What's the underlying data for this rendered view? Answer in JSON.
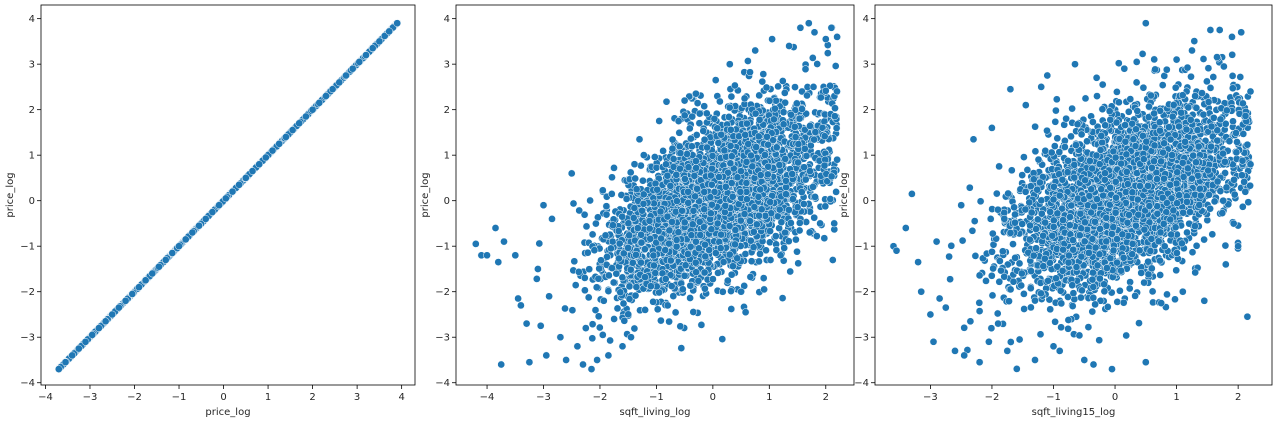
{
  "chart_data": [
    {
      "type": "scatter",
      "xlabel": "price_log",
      "ylabel": "price_log",
      "xlim": [
        -4.1,
        4.3
      ],
      "ylim": [
        -4.05,
        4.3
      ],
      "xticks": [
        -4,
        -3,
        -2,
        -1,
        0,
        1,
        2,
        3,
        4
      ],
      "yticks": [
        -4,
        -3,
        -2,
        -1,
        0,
        1,
        2,
        3,
        4
      ],
      "tick_labels_x": [
        "−4",
        "−3",
        "−2",
        "−1",
        "0",
        "1",
        "2",
        "3",
        "4"
      ],
      "tick_labels_y": [
        "−4",
        "−3",
        "−2",
        "−1",
        "0",
        "1",
        "2",
        "3",
        "4"
      ],
      "point_color": "#1f77b4",
      "pattern": "identity line y = x from -3.7 to 3.9",
      "points": [
        [
          -3.7,
          -3.7
        ],
        [
          -3.55,
          -3.55
        ],
        [
          -3.4,
          -3.4
        ],
        [
          -3.25,
          -3.25
        ],
        [
          -3.1,
          -3.1
        ],
        [
          -2.95,
          -2.95
        ],
        [
          -2.8,
          -2.8
        ],
        [
          -2.65,
          -2.65
        ],
        [
          -2.5,
          -2.5
        ],
        [
          -2.35,
          -2.35
        ],
        [
          -2.2,
          -2.2
        ],
        [
          -2.05,
          -2.05
        ],
        [
          -1.9,
          -1.9
        ],
        [
          -1.75,
          -1.75
        ],
        [
          -1.6,
          -1.6
        ],
        [
          -1.45,
          -1.45
        ],
        [
          -1.3,
          -1.3
        ],
        [
          -1.15,
          -1.15
        ],
        [
          -1.0,
          -1.0
        ],
        [
          -0.85,
          -0.85
        ],
        [
          -0.7,
          -0.7
        ],
        [
          -0.55,
          -0.55
        ],
        [
          -0.4,
          -0.4
        ],
        [
          -0.25,
          -0.25
        ],
        [
          -0.1,
          -0.1
        ],
        [
          0.05,
          0.05
        ],
        [
          0.2,
          0.2
        ],
        [
          0.35,
          0.35
        ],
        [
          0.5,
          0.5
        ],
        [
          0.65,
          0.65
        ],
        [
          0.8,
          0.8
        ],
        [
          0.95,
          0.95
        ],
        [
          1.1,
          1.1
        ],
        [
          1.25,
          1.25
        ],
        [
          1.4,
          1.4
        ],
        [
          1.55,
          1.55
        ],
        [
          1.7,
          1.7
        ],
        [
          1.85,
          1.85
        ],
        [
          2.0,
          2.0
        ],
        [
          2.15,
          2.15
        ],
        [
          2.3,
          2.3
        ],
        [
          2.45,
          2.45
        ],
        [
          2.6,
          2.6
        ],
        [
          2.75,
          2.75
        ],
        [
          2.9,
          2.9
        ],
        [
          3.05,
          3.05
        ],
        [
          3.2,
          3.2
        ],
        [
          3.35,
          3.35
        ],
        [
          3.5,
          3.5
        ],
        [
          3.62,
          3.62
        ],
        [
          3.72,
          3.72
        ],
        [
          3.9,
          3.9
        ]
      ]
    },
    {
      "type": "scatter",
      "xlabel": "sqft_living_log",
      "ylabel": "price_log",
      "xlim": [
        -4.55,
        2.5
      ],
      "ylim": [
        -4.05,
        4.3
      ],
      "xticks": [
        -4,
        -3,
        -2,
        -1,
        0,
        1,
        2
      ],
      "yticks": [
        -4,
        -3,
        -2,
        -1,
        0,
        1,
        2,
        3,
        4
      ],
      "tick_labels_x": [
        "−4",
        "−3",
        "−2",
        "−1",
        "0",
        "1",
        "2"
      ],
      "tick_labels_y": [
        "−4",
        "−3",
        "−2",
        "−1",
        "0",
        "1",
        "2",
        "3",
        "4"
      ],
      "point_color": "#1f77b4",
      "pattern": "dense positive-correlation cloud, x from -4.2 to 2.2, y from -3.7 to 3.9",
      "points": [
        [
          -4.2,
          -0.95
        ],
        [
          -4.1,
          -1.2
        ],
        [
          -4.0,
          -1.2
        ],
        [
          -3.85,
          -0.6
        ],
        [
          -3.8,
          -1.35
        ],
        [
          -3.75,
          -3.6
        ],
        [
          -3.7,
          -0.9
        ],
        [
          -3.5,
          -1.2
        ],
        [
          -3.45,
          -2.15
        ],
        [
          -3.4,
          -2.3
        ],
        [
          -3.3,
          -2.7
        ],
        [
          -3.25,
          -3.55
        ],
        [
          -3.1,
          -1.5
        ],
        [
          -3.05,
          -2.75
        ],
        [
          -3.0,
          -0.1
        ],
        [
          -2.95,
          -3.4
        ],
        [
          -2.9,
          -2.1
        ],
        [
          -2.85,
          -0.4
        ],
        [
          -2.7,
          -3.0
        ],
        [
          -2.6,
          -3.5
        ],
        [
          -2.5,
          0.6
        ],
        [
          -2.4,
          -3.2
        ],
        [
          -2.3,
          -3.6
        ],
        [
          -2.25,
          -2.8
        ],
        [
          -2.15,
          -3.7
        ],
        [
          -2.05,
          -3.5
        ],
        [
          -1.95,
          -2.95
        ],
        [
          -1.85,
          -3.4
        ],
        [
          -1.75,
          -2.6
        ],
        [
          -1.6,
          -3.2
        ],
        [
          -1.45,
          -3.0
        ],
        [
          -1.3,
          1.35
        ],
        [
          -1.2,
          -2.4
        ],
        [
          -0.95,
          1.75
        ],
        [
          -0.8,
          -2.3
        ],
        [
          -0.5,
          2.2
        ],
        [
          -0.3,
          2.35
        ],
        [
          0.05,
          2.65
        ],
        [
          0.3,
          3.0
        ],
        [
          0.5,
          -2.0
        ],
        [
          0.75,
          3.3
        ],
        [
          0.9,
          -1.7
        ],
        [
          1.05,
          3.55
        ],
        [
          1.2,
          -1.2
        ],
        [
          1.35,
          3.4
        ],
        [
          1.55,
          3.8
        ],
        [
          1.7,
          3.9
        ],
        [
          1.8,
          3.7
        ],
        [
          1.9,
          -0.5
        ],
        [
          2.0,
          3.55
        ],
        [
          2.1,
          3.8
        ],
        [
          2.15,
          -0.5
        ],
        [
          2.2,
          3.6
        ],
        [
          2.2,
          0.9
        ]
      ]
    },
    {
      "type": "scatter",
      "xlabel": "sqft_living15_log",
      "ylabel": "price_log",
      "xlim": [
        -3.9,
        2.55
      ],
      "ylim": [
        -4.05,
        4.3
      ],
      "xticks": [
        -3,
        -2,
        -1,
        0,
        1,
        2
      ],
      "yticks": [
        -4,
        -3,
        -2,
        -1,
        0,
        1,
        2,
        3,
        4
      ],
      "tick_labels_x": [
        "−3",
        "−2",
        "−1",
        "0",
        "1",
        "2"
      ],
      "tick_labels_y": [
        "−4",
        "−3",
        "−2",
        "−1",
        "0",
        "1",
        "2",
        "3",
        "4"
      ],
      "point_color": "#1f77b4",
      "pattern": "positive-correlation cloud, x from -3.6 to 2.2, y from -3.7 to 3.9",
      "points": [
        [
          -3.6,
          -1.0
        ],
        [
          -3.55,
          -1.1
        ],
        [
          -3.4,
          -0.6
        ],
        [
          -3.3,
          0.15
        ],
        [
          -3.2,
          -1.35
        ],
        [
          -3.15,
          -2.0
        ],
        [
          -3.0,
          -2.5
        ],
        [
          -2.95,
          -3.1
        ],
        [
          -2.9,
          -0.9
        ],
        [
          -2.85,
          -2.15
        ],
        [
          -2.75,
          -2.35
        ],
        [
          -2.6,
          -3.3
        ],
        [
          -2.5,
          -0.1
        ],
        [
          -2.45,
          -3.4
        ],
        [
          -2.35,
          -2.65
        ],
        [
          -2.3,
          1.35
        ],
        [
          -2.2,
          -3.55
        ],
        [
          -2.05,
          -3.1
        ],
        [
          -2.0,
          1.6
        ],
        [
          -1.9,
          -2.7
        ],
        [
          -1.75,
          -3.3
        ],
        [
          -1.7,
          2.45
        ],
        [
          -1.55,
          -3.05
        ],
        [
          -1.45,
          2.1
        ],
        [
          -1.3,
          -3.5
        ],
        [
          -1.2,
          2.5
        ],
        [
          -1.1,
          2.75
        ],
        [
          -1.0,
          -3.2
        ],
        [
          -0.9,
          -3.3
        ],
        [
          -0.65,
          3.0
        ],
        [
          -0.5,
          -3.5
        ],
        [
          -0.35,
          -3.6
        ],
        [
          -0.2,
          2.55
        ],
        [
          -0.05,
          -3.7
        ],
        [
          0.15,
          2.9
        ],
        [
          0.35,
          2.6
        ],
        [
          0.5,
          3.9
        ],
        [
          0.5,
          -3.55
        ],
        [
          0.75,
          -2.25
        ],
        [
          1.0,
          3.1
        ],
        [
          1.1,
          -2.0
        ],
        [
          1.25,
          3.3
        ],
        [
          1.45,
          -2.2
        ],
        [
          1.55,
          3.75
        ],
        [
          1.7,
          3.75
        ],
        [
          1.8,
          -1.4
        ],
        [
          1.9,
          3.6
        ],
        [
          2.0,
          -1.0
        ],
        [
          2.05,
          3.7
        ],
        [
          2.15,
          -2.55
        ],
        [
          2.2,
          2.4
        ],
        [
          2.2,
          0.8
        ]
      ]
    }
  ]
}
